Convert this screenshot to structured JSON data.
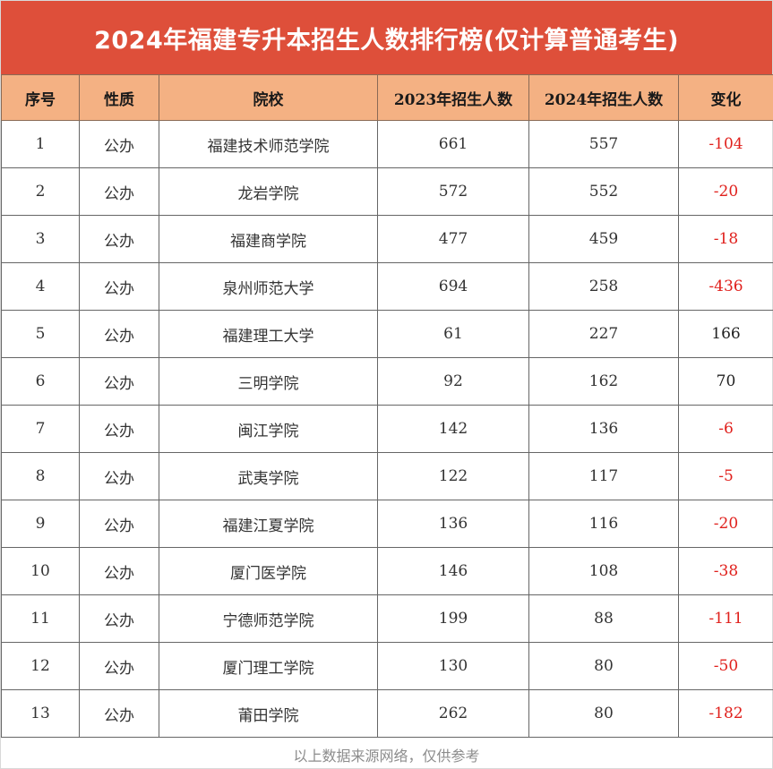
{
  "title": "2024年福建专升本招生人数排行榜(仅计算普通考生)",
  "headers": [
    "序号",
    "性质",
    "院校",
    "2023年招生人数",
    "2024年招生人数",
    "变化"
  ],
  "rows": [
    {
      "no": "1",
      "type": "公办",
      "school": "福建技术师范学院",
      "y2023": "661",
      "y2024": "557",
      "change": "-104"
    },
    {
      "no": "2",
      "type": "公办",
      "school": "龙岩学院",
      "y2023": "572",
      "y2024": "552",
      "change": "-20"
    },
    {
      "no": "3",
      "type": "公办",
      "school": "福建商学院",
      "y2023": "477",
      "y2024": "459",
      "change": "-18"
    },
    {
      "no": "4",
      "type": "公办",
      "school": "泉州师范大学",
      "y2023": "694",
      "y2024": "258",
      "change": "-436"
    },
    {
      "no": "5",
      "type": "公办",
      "school": "福建理工大学",
      "y2023": "61",
      "y2024": "227",
      "change": "166"
    },
    {
      "no": "6",
      "type": "公办",
      "school": "三明学院",
      "y2023": "92",
      "y2024": "162",
      "change": "70"
    },
    {
      "no": "7",
      "type": "公办",
      "school": "闽江学院",
      "y2023": "142",
      "y2024": "136",
      "change": "-6"
    },
    {
      "no": "8",
      "type": "公办",
      "school": "武夷学院",
      "y2023": "122",
      "y2024": "117",
      "change": "-5"
    },
    {
      "no": "9",
      "type": "公办",
      "school": "福建江夏学院",
      "y2023": "136",
      "y2024": "116",
      "change": "-20"
    },
    {
      "no": "10",
      "type": "公办",
      "school": "厦门医学院",
      "y2023": "146",
      "y2024": "108",
      "change": "-38"
    },
    {
      "no": "11",
      "type": "公办",
      "school": "宁德师范学院",
      "y2023": "199",
      "y2024": "88",
      "change": "-111"
    },
    {
      "no": "12",
      "type": "公办",
      "school": "厦门理工学院",
      "y2023": "130",
      "y2024": "80",
      "change": "-50"
    },
    {
      "no": "13",
      "type": "公办",
      "school": "莆田学院",
      "y2023": "262",
      "y2024": "80",
      "change": "-182"
    }
  ],
  "footer": "以上数据来源网络，仅供参考",
  "colors": {
    "title_bg": "#de4f3a",
    "header_bg": "#f4b183",
    "negative": "#e0201c"
  }
}
